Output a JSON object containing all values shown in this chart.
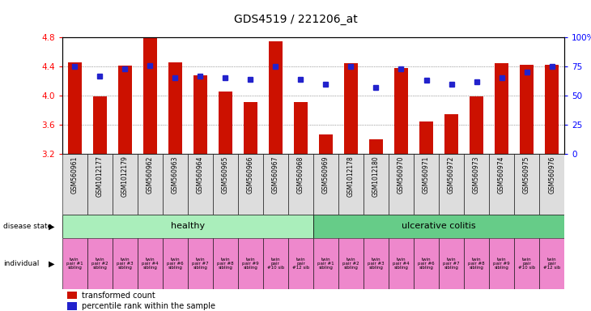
{
  "title": "GDS4519 / 221206_at",
  "bar_vals": [
    4.46,
    3.99,
    4.41,
    4.8,
    4.46,
    4.28,
    4.06,
    3.91,
    4.75,
    3.91,
    3.47,
    4.45,
    3.4,
    4.38,
    3.64,
    3.74,
    3.99,
    4.44,
    4.42,
    4.42
  ],
  "pct_vals": [
    75,
    67,
    73,
    76,
    65,
    67,
    65,
    64,
    75,
    64,
    60,
    75,
    57,
    73,
    63,
    60,
    62,
    65,
    70,
    75
  ],
  "sample_labels": [
    "GSM560961",
    "GSM1012177",
    "GSM1012179",
    "GSM560962",
    "GSM560963",
    "GSM560964",
    "GSM560965",
    "GSM560966",
    "GSM560967",
    "GSM560968",
    "GSM560969",
    "GSM1012178",
    "GSM1012180",
    "GSM560970",
    "GSM560971",
    "GSM560972",
    "GSM560973",
    "GSM560974",
    "GSM560975",
    "GSM560976"
  ],
  "individual_labels": [
    "twin\npair #1\nsibling",
    "twin\npair #2\nsibling",
    "twin\npair #3\nsibling",
    "twin\npair #4\nsibling",
    "twin\npair #6\nsibling",
    "twin\npair #7\nsibling",
    "twin\npair #8\nsibling",
    "twin\npair #9\nsibling",
    "twin\npair\n#10 sib",
    "twin\npair\n#12 sib",
    "twin\npair #1\nsibling",
    "twin\npair #2\nsibling",
    "twin\npair #3\nsibling",
    "twin\npair #4\nsibling",
    "twin\npair #6\nsibling",
    "twin\npair #7\nsibling",
    "twin\npair #8\nsibling",
    "twin\npair #9\nsibling",
    "twin\npair\n#10 sib",
    "twin\npair\n#12 sib"
  ],
  "ylim_left": [
    3.2,
    4.8
  ],
  "yticks_left": [
    3.2,
    3.6,
    4.0,
    4.4,
    4.8
  ],
  "ytick_labels_right": [
    "0",
    "25",
    "50",
    "75",
    "100%"
  ],
  "bar_color": "#cc1100",
  "dot_color": "#2222cc",
  "healthy_color": "#aaeebb",
  "uc_color": "#66cc88",
  "ind_color": "#ee88cc",
  "xticklabel_bg": "#dddddd",
  "title_fontsize": 10,
  "legend_red_text": "transformed count",
  "legend_blue_text": "percentile rank within the sample"
}
